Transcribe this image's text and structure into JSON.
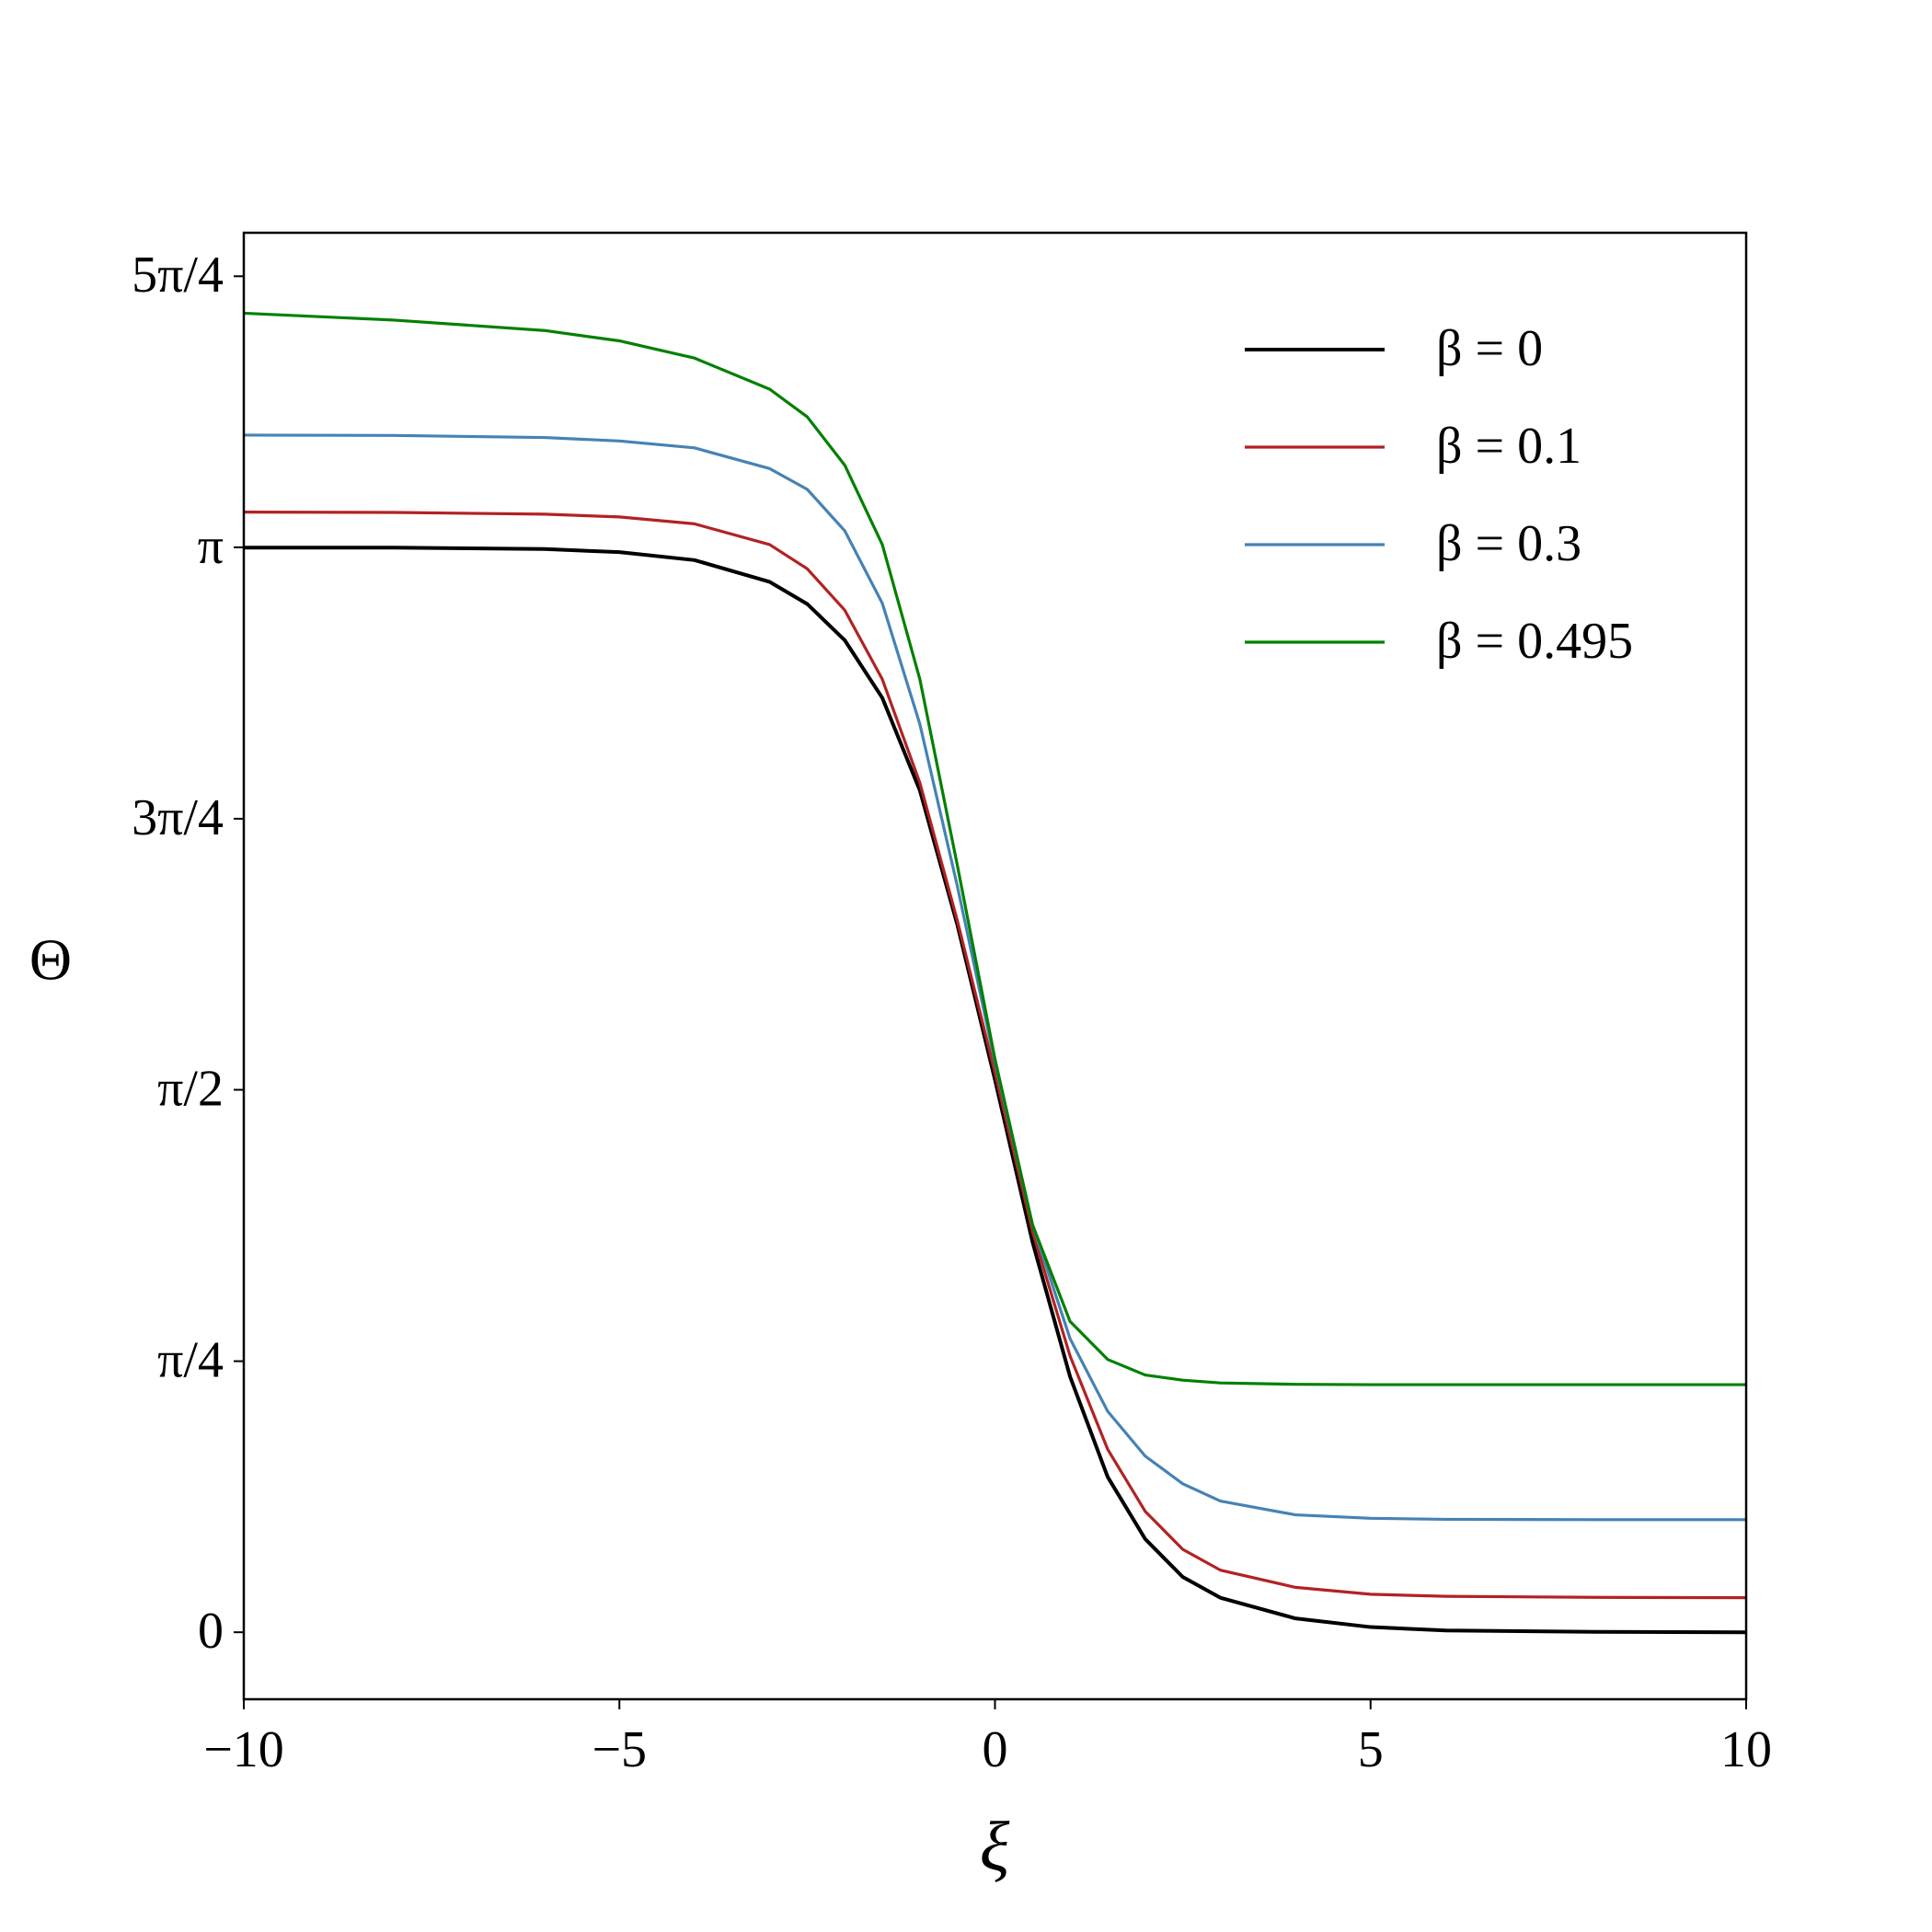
{
  "chart_data": {
    "type": "line",
    "xlabel": "ξ",
    "ylabel": "Θ",
    "x": [
      -10,
      -8,
      -6,
      -5,
      -4,
      -3,
      -2.5,
      -2,
      -1.5,
      -1,
      -0.5,
      0,
      0.5,
      1,
      1.5,
      2,
      2.5,
      3,
      4,
      5,
      6,
      8,
      10
    ],
    "series": [
      {
        "name": "β = 0",
        "color": "#000000",
        "values": [
          3.141,
          3.141,
          3.137,
          3.128,
          3.105,
          3.042,
          2.978,
          2.873,
          2.706,
          2.438,
          2.048,
          1.6,
          1.13,
          0.74,
          0.45,
          0.27,
          0.16,
          0.1,
          0.04,
          0.015,
          0.005,
          0.001,
          0
        ]
      },
      {
        "name": "β = 0.1",
        "color": "#b22222",
        "values": [
          3.244,
          3.243,
          3.238,
          3.23,
          3.21,
          3.15,
          3.08,
          2.96,
          2.76,
          2.46,
          2.06,
          1.62,
          1.16,
          0.8,
          0.53,
          0.35,
          0.24,
          0.18,
          0.13,
          0.11,
          0.104,
          0.101,
          0.1
        ]
      },
      {
        "name": "β = 0.3",
        "color": "#4682b4",
        "values": [
          3.467,
          3.466,
          3.46,
          3.45,
          3.43,
          3.37,
          3.31,
          3.19,
          2.98,
          2.63,
          2.16,
          1.65,
          1.18,
          0.85,
          0.64,
          0.51,
          0.43,
          0.38,
          0.34,
          0.33,
          0.327,
          0.326,
          0.326
        ]
      },
      {
        "name": "β = 0.495",
        "color": "#008000",
        "values": [
          3.82,
          3.8,
          3.77,
          3.74,
          3.69,
          3.6,
          3.52,
          3.38,
          3.15,
          2.76,
          2.22,
          1.66,
          1.18,
          0.9,
          0.79,
          0.745,
          0.73,
          0.722,
          0.718,
          0.717,
          0.717,
          0.717,
          0.717
        ]
      }
    ],
    "xlim": [
      -10,
      10
    ],
    "xticks": [
      {
        "value": -10,
        "label": "−10"
      },
      {
        "value": -5,
        "label": "−5"
      },
      0,
      5,
      10
    ],
    "ylim": [
      -0.194,
      4.053
    ],
    "yticks": [
      0,
      {
        "value": 0.785,
        "label": "π/4"
      },
      {
        "value": 1.571,
        "label": "π/2"
      },
      {
        "value": 2.356,
        "label": "3π/4"
      },
      {
        "value": 3.142,
        "label": "π"
      },
      {
        "value": 3.927,
        "label": "5π/4"
      }
    ],
    "legend": "upper right",
    "grid": false
  }
}
